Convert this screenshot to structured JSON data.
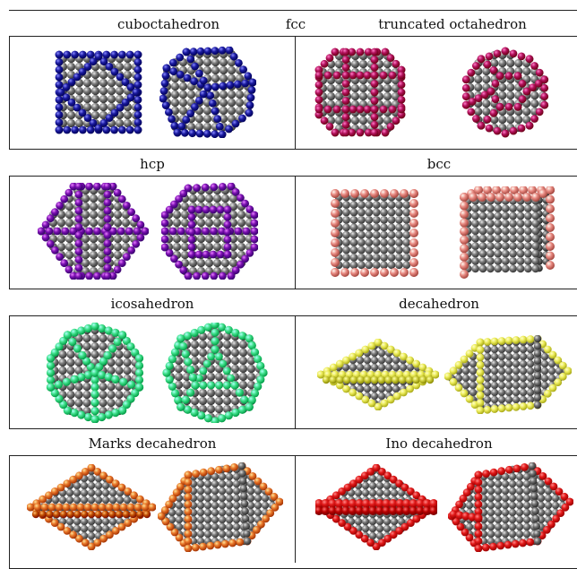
{
  "titles": {
    "cuboctahedron": "cuboctahedron",
    "fcc": "fcc",
    "truncated_octahedron": "truncated octahedron",
    "hcp": "hcp",
    "bcc": "bcc",
    "icosahedron": "icosahedron",
    "decahedron": "decahedron",
    "marks_decahedron": "Marks decahedron",
    "ino_decahedron": "Ino decahedron"
  },
  "colors": {
    "bulk_atom": "#7a7a7a",
    "cuboctahedron_edge": "#1a1a9e",
    "truncated_octahedron_edge": "#b0105a",
    "hcp_edge": "#7a10b0",
    "bcc_edge": "#e88a82",
    "icosahedron_edge": "#3fe08a",
    "decahedron_edge": "#ecec5a",
    "marks_decahedron_edge": "#e8762a",
    "ino_decahedron_edge": "#e01818"
  }
}
